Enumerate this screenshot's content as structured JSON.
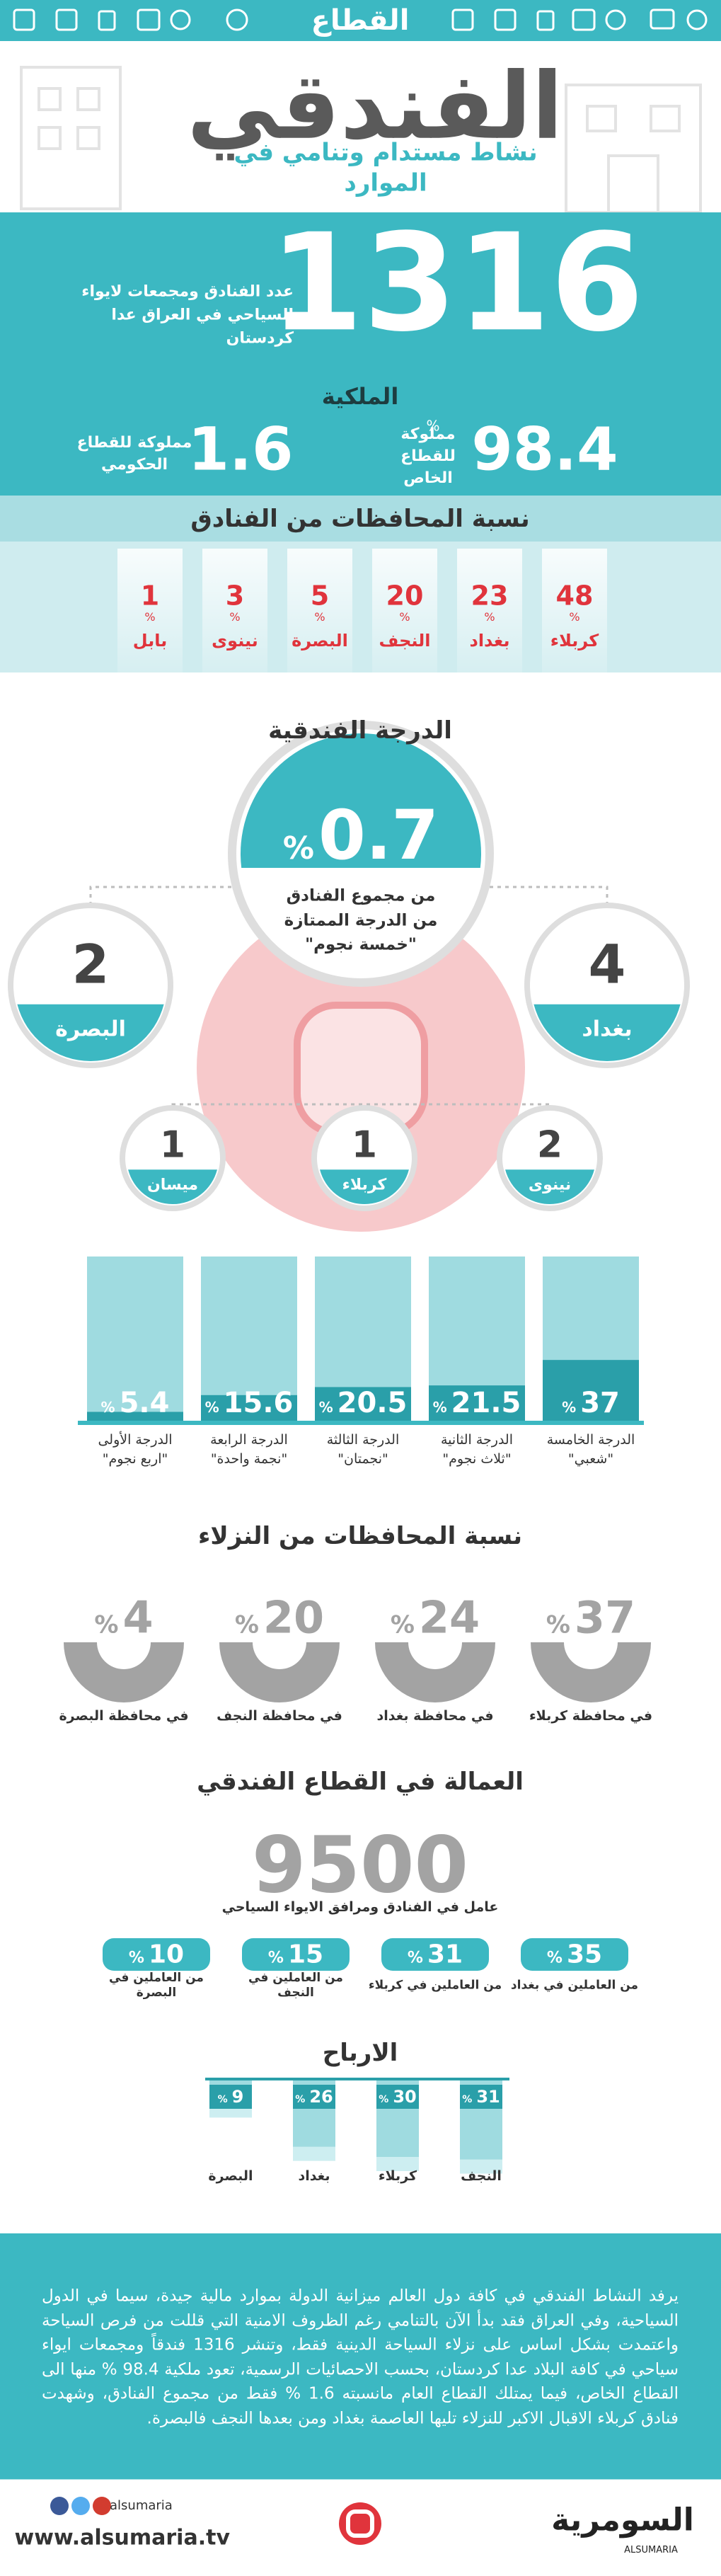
{
  "header": {
    "sector": "القطاع",
    "title": "الفندقي",
    "subtitle": "نشاط مستدام وتنامي في الموارد"
  },
  "percent_sign": "%",
  "summary": {
    "hotels_count": 1316,
    "hotels_label": "عدد الفنادق ومجمعات لايواء السياحي في العراق عدا كردستان",
    "ownership_title": "الملكية",
    "private_share": 98.4,
    "private_label": "مملوكة للقطاع الخاص",
    "public_share": 1.6,
    "public_label": "مملوكة للقطاع الحكومي"
  },
  "hotels_by_province": {
    "title": "نسبة المحافظات من الفنادق",
    "items": [
      {
        "value": 48,
        "province": "كربلاء"
      },
      {
        "value": 23,
        "province": "بغداد"
      },
      {
        "value": 20,
        "province": "النجف"
      },
      {
        "value": 5,
        "province": "البصرة"
      },
      {
        "value": 3,
        "province": "نينوى"
      },
      {
        "value": 1,
        "province": "بابل"
      }
    ]
  },
  "hotel_grade": {
    "title": "الدرجة الفندقية",
    "five_star_share": 0.7,
    "five_star_label": "من مجموع الفنادق من الدرجة الممتازة \"خمسة نجوم\"",
    "five_star_by_province": [
      {
        "value": 4,
        "province": "بغداد"
      },
      {
        "value": 2,
        "province": "البصرة"
      },
      {
        "value": 2,
        "province": "نينوى"
      },
      {
        "value": 1,
        "province": "كربلاء"
      },
      {
        "value": 1,
        "province": "ميسان"
      }
    ],
    "grades": [
      {
        "value": 37,
        "grade": "الدرجة الخامسة",
        "note": "\"شعبي\""
      },
      {
        "value": 21.5,
        "grade": "الدرجة الثانية",
        "note": "\"ثلاث نجوم\""
      },
      {
        "value": 20.5,
        "grade": "الدرجة الثالثة",
        "note": "\"نجمتان\""
      },
      {
        "value": 15.6,
        "grade": "الدرجة الرابعة",
        "note": "\"نجمة واحدة\""
      },
      {
        "value": 5.4,
        "grade": "الدرجة الأولى",
        "note": "\"اربع نجوم\""
      }
    ]
  },
  "guests_by_province": {
    "title": "نسبة المحافظات من النزلاء",
    "items": [
      {
        "value": 37,
        "label": "في محافظة كربلاء"
      },
      {
        "value": 24,
        "label": "في محافظة بغداد"
      },
      {
        "value": 20,
        "label": "في محافظة النجف"
      },
      {
        "value": 4,
        "label": "في محافظة البصرة"
      }
    ]
  },
  "employment": {
    "title": "العمالة في القطاع الفندقي",
    "workers": 9500,
    "workers_label": "عامل في الفنادق ومرافق الايواء السياحي",
    "items": [
      {
        "value": 35,
        "label": "من العاملين في بغداد"
      },
      {
        "value": 31,
        "label": "من العاملين في كربلاء"
      },
      {
        "value": 15,
        "label": "من العاملين في النجف"
      },
      {
        "value": 10,
        "label": "من العاملين في البصرة"
      }
    ]
  },
  "profits": {
    "title": "الارباح",
    "items": [
      {
        "value": 31,
        "province": "النجف"
      },
      {
        "value": 30,
        "province": "كربلاء"
      },
      {
        "value": 26,
        "province": "بغداد"
      },
      {
        "value": 9,
        "province": "البصرة"
      }
    ]
  },
  "paragraph": "يرفد النشاط الفندقي في كافة دول العالم ميزانية الدولة بموارد مالية جيدة، سيما في الدول السياحية، وفي العراق فقد بدأ الآن بالتنامي رغم الظروف الامنية التي قللت من فرص السياحة واعتمدت بشكل اساس على نزلاء السياحة الدينية فقط، وتنشر 1316 فندقاً ومجمعات ايواء سياحي في كافة البلاد عدا كردستان، بحسب الاحصائيات الرسمية، تعود ملكية 98.4 % منها الى القطاع الخاص، فيما يمتلك القطاع العام مانسبته 1.6 % فقط من مجموع الفنادق، وشهدت فنادق كربلاء الاقبال الاكبر للنزلاء تليها العاصمة بغداد ومن بعدها النجف فالبصرة.",
  "footer": {
    "handle": "alsumaria",
    "website": "www.alsumaria.tv",
    "brand": "السومرية",
    "brand_latin": "ALSUMARIA"
  }
}
